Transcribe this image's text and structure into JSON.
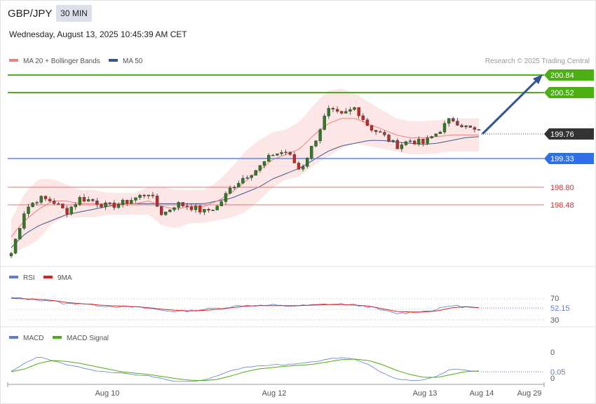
{
  "header": {
    "symbol": "GBP/JPY",
    "interval": "30 MIN",
    "datetime": "Wednesday, August 13, 2025 10:45:39 AM CET"
  },
  "main_panel": {
    "legend": [
      {
        "label": "MA 20 + Bollinger Bands",
        "color": "#f08080"
      },
      {
        "label": "MA 50",
        "color": "#2f5597"
      }
    ],
    "watermark": "Research © 2025 Trading Central",
    "colors": {
      "up": "#2e7d1f",
      "down": "#c62828",
      "bands": "#fde2e2",
      "ma20": "#f08080",
      "ma50": "#3f5a8f",
      "arrow": "#2f5597"
    }
  },
  "levels": [
    {
      "value": "200.84",
      "color": "#4caf12",
      "style": "resistance"
    },
    {
      "value": "200.52",
      "color": "#4caf12",
      "style": "resistance"
    },
    {
      "value": "199.76",
      "color": "#333333",
      "style": "last-price"
    },
    {
      "value": "199.33",
      "color": "#2f6fe8",
      "style": "pivot"
    },
    {
      "value": "198.80",
      "color": "#e05555",
      "style": "support"
    },
    {
      "value": "198.48",
      "color": "#e05555",
      "style": "support"
    }
  ],
  "rsi_panel": {
    "legend": [
      {
        "label": "RSI",
        "color": "#5b7fd6"
      },
      {
        "label": "9MA",
        "color": "#e02020"
      }
    ],
    "ticks": [
      "70",
      "30"
    ],
    "value": "52.15"
  },
  "macd_panel": {
    "legend": [
      {
        "label": "MACD",
        "color": "#5b7fd6"
      },
      {
        "label": "MACD Signal",
        "color": "#4caf12"
      }
    ],
    "ticks": [
      "0",
      "0"
    ],
    "value": "0.05"
  },
  "x_axis": {
    "labels": [
      "Aug 10",
      "Aug 12",
      "Aug 13",
      "Aug 14",
      "Aug 29"
    ]
  },
  "chart_data": {
    "type": "candlestick",
    "title": "GBP/JPY",
    "ylim": [
      197.5,
      201.3
    ],
    "x_labels": [
      "Aug 10",
      "Aug 12",
      "Aug 13",
      "Aug 14",
      "Aug 29"
    ],
    "close_anchors": [
      197.6,
      198.4,
      198.6,
      198.55,
      198.35,
      198.6,
      198.55,
      198.45,
      198.5,
      198.6,
      198.7,
      198.3,
      198.5,
      198.45,
      198.35,
      198.45,
      198.8,
      199.0,
      199.15,
      199.4,
      199.45,
      199.1,
      199.6,
      200.2,
      200.1,
      200.25,
      199.9,
      199.75,
      199.55,
      199.65,
      199.6,
      199.8,
      200.05,
      199.9,
      199.8
    ],
    "ma20_anchors": [
      197.9,
      198.2,
      198.4,
      198.55,
      198.55,
      198.5,
      198.5,
      198.5,
      198.5,
      198.5,
      198.55,
      198.45,
      198.4,
      198.45,
      198.45,
      198.55,
      198.7,
      198.9,
      199.1,
      199.3,
      199.4,
      199.5,
      199.75,
      199.95,
      200.05,
      200.05,
      199.95,
      199.85,
      199.75,
      199.7,
      199.7,
      199.72,
      199.75,
      199.75,
      199.75
    ],
    "ma50_anchors": [
      197.7,
      197.95,
      198.1,
      198.2,
      198.3,
      198.35,
      198.4,
      198.45,
      198.5,
      198.5,
      198.5,
      198.5,
      198.5,
      198.5,
      198.5,
      198.55,
      198.6,
      198.7,
      198.8,
      198.95,
      199.05,
      199.15,
      199.3,
      199.45,
      199.55,
      199.6,
      199.65,
      199.65,
      199.62,
      199.6,
      199.58,
      199.6,
      199.65,
      199.7,
      199.72
    ],
    "band_width_anchors": [
      0.3,
      0.5,
      0.55,
      0.4,
      0.3,
      0.25,
      0.25,
      0.2,
      0.2,
      0.2,
      0.25,
      0.35,
      0.35,
      0.3,
      0.3,
      0.35,
      0.45,
      0.55,
      0.55,
      0.5,
      0.45,
      0.5,
      0.55,
      0.6,
      0.55,
      0.45,
      0.4,
      0.35,
      0.3,
      0.3,
      0.3,
      0.3,
      0.3,
      0.3,
      0.3
    ],
    "rsi_anchors": [
      72,
      70,
      68,
      66,
      60,
      62,
      58,
      56,
      55,
      54,
      52,
      48,
      46,
      47,
      50,
      52,
      55,
      58,
      57,
      58,
      56,
      57,
      58,
      60,
      60,
      58,
      55,
      48,
      42,
      44,
      46,
      50,
      58,
      54,
      52.15
    ],
    "rsi_ma_anchors": [
      71,
      70,
      69,
      67,
      63,
      61,
      59,
      57,
      56,
      55,
      53,
      50,
      48,
      47,
      48,
      50,
      53,
      56,
      57,
      57,
      57,
      57,
      58,
      59,
      59,
      58,
      56,
      51,
      46,
      45,
      45,
      47,
      53,
      55,
      53
    ],
    "macd_anchors": [
      0.05,
      0.35,
      0.6,
      0.45,
      0.3,
      0.2,
      0.1,
      0.05,
      0.0,
      -0.05,
      -0.1,
      -0.2,
      -0.3,
      -0.3,
      -0.25,
      -0.1,
      0.1,
      0.2,
      0.25,
      0.3,
      0.3,
      0.35,
      0.4,
      0.5,
      0.55,
      0.5,
      0.3,
      0.0,
      -0.2,
      -0.25,
      -0.25,
      -0.1,
      0.15,
      0.1,
      0.05
    ],
    "macd_signal_anchors": [
      0.05,
      0.15,
      0.35,
      0.45,
      0.42,
      0.35,
      0.25,
      0.15,
      0.05,
      0.0,
      -0.05,
      -0.12,
      -0.2,
      -0.25,
      -0.27,
      -0.22,
      -0.1,
      0.05,
      0.15,
      0.2,
      0.25,
      0.28,
      0.32,
      0.4,
      0.48,
      0.5,
      0.45,
      0.3,
      0.1,
      -0.05,
      -0.15,
      -0.15,
      -0.05,
      0.05,
      0.08
    ],
    "forecast": {
      "from": 199.76,
      "to": 200.84
    }
  }
}
